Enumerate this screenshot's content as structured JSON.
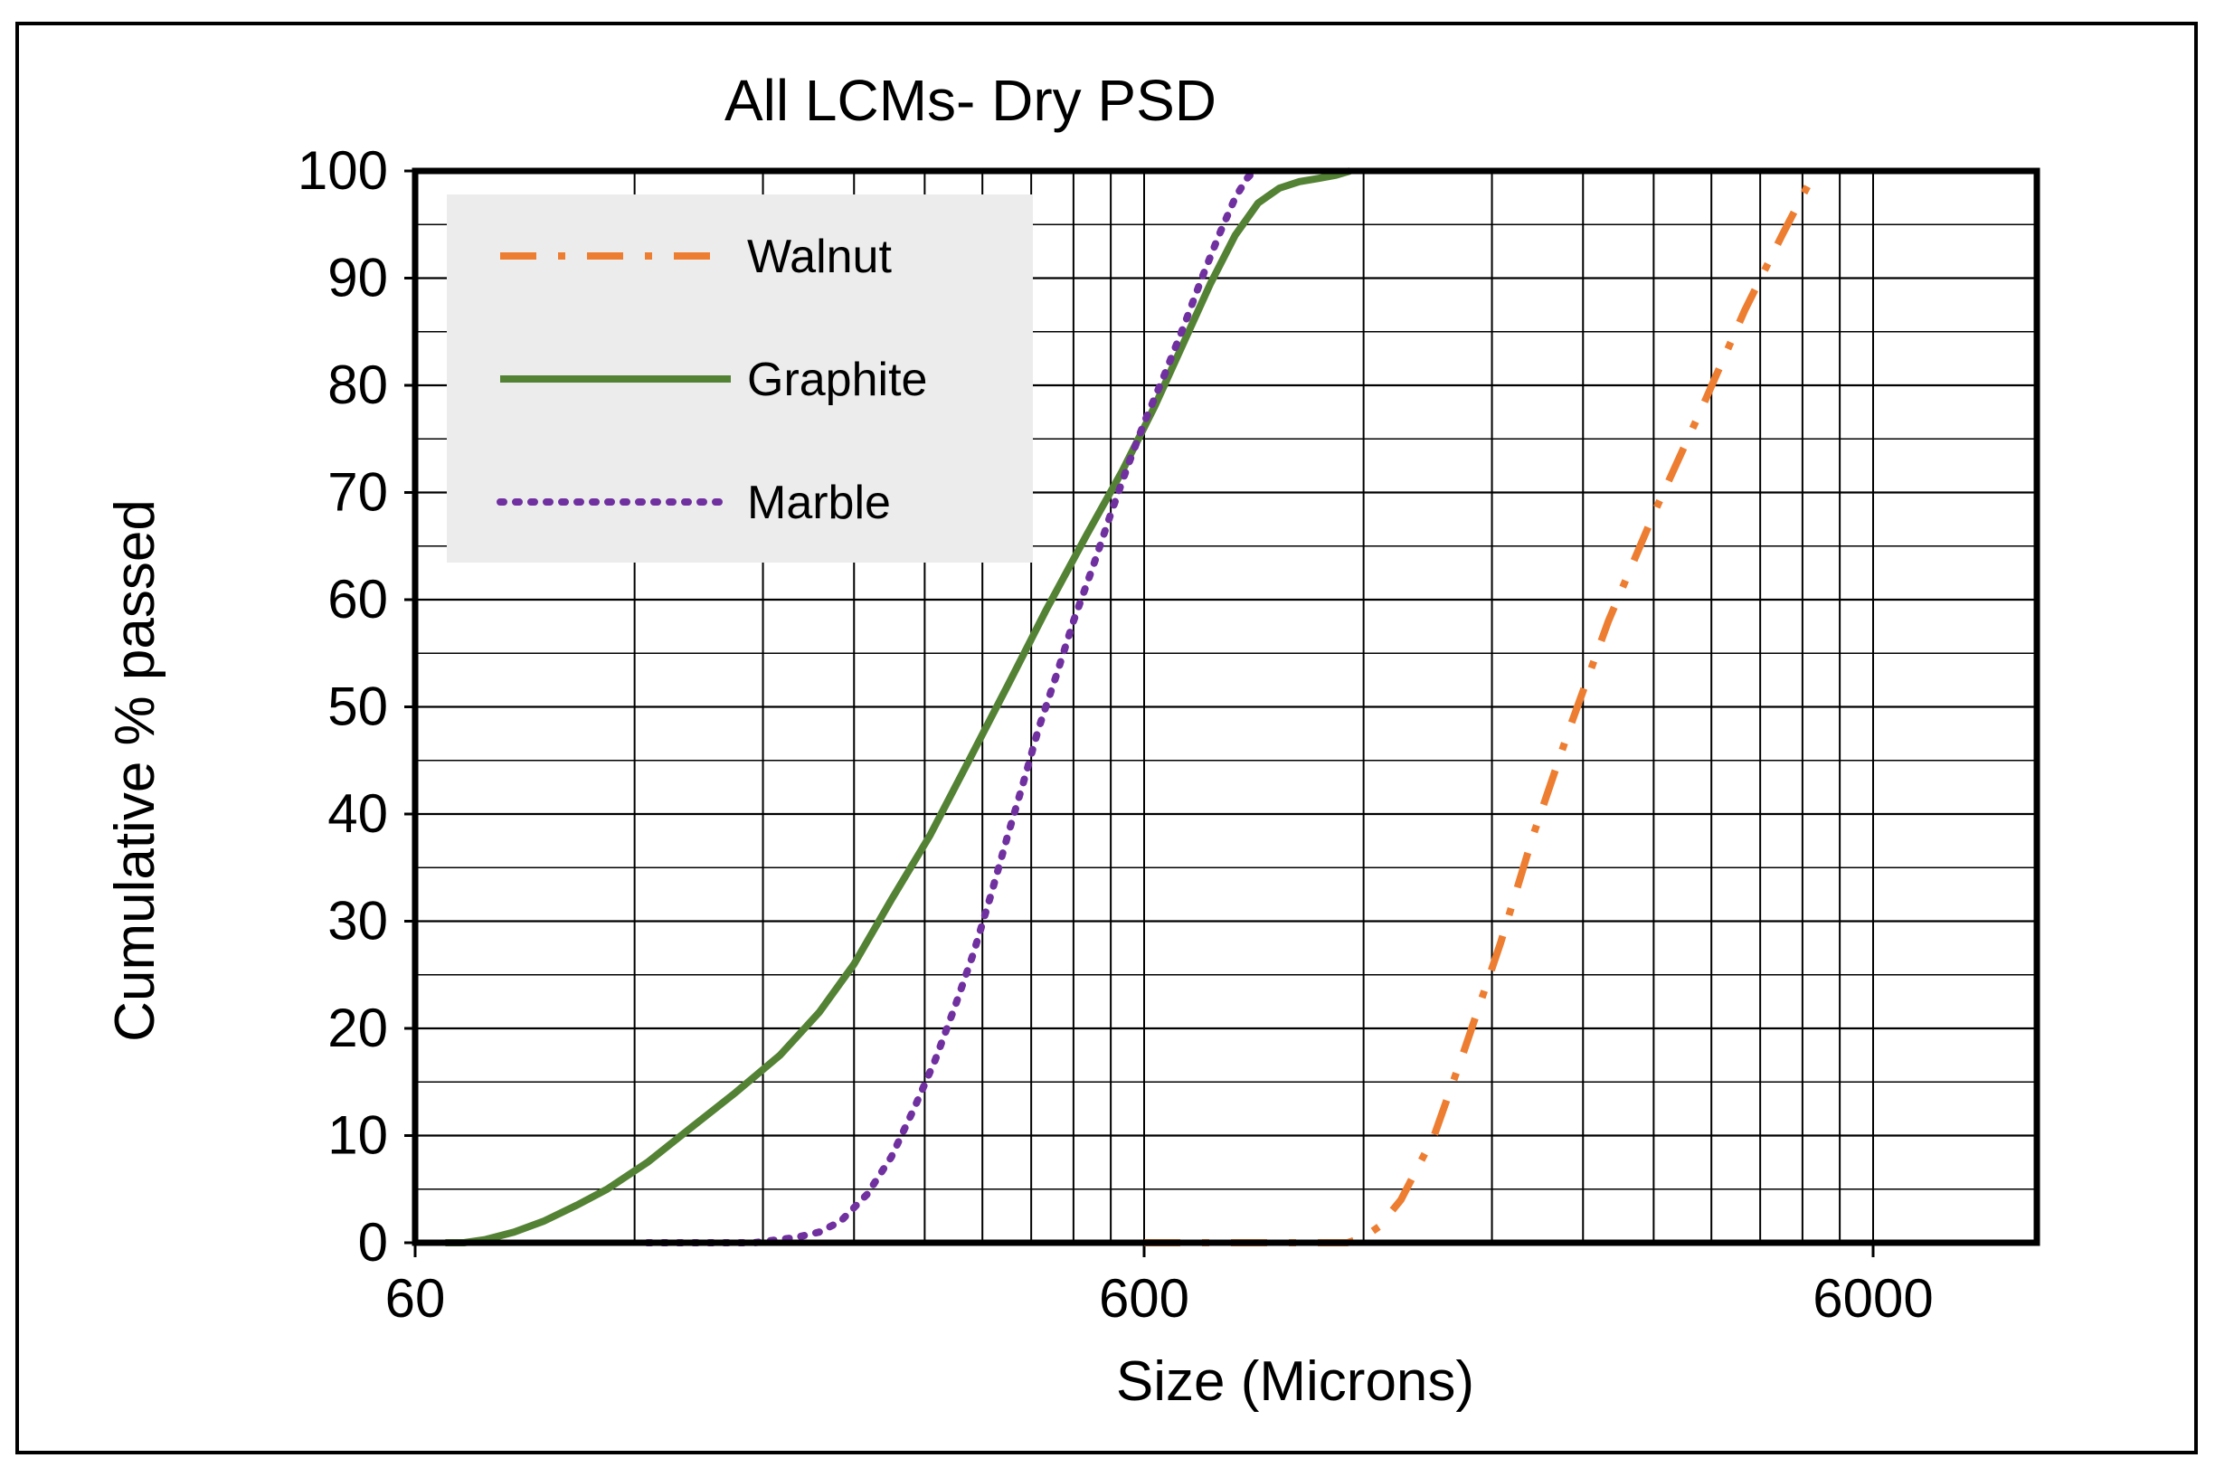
{
  "chart_data": {
    "type": "line",
    "title": "All LCMs- Dry PSD",
    "xlabel": "Size (Microns)",
    "ylabel": "Cumulative % passed",
    "xscale": "log",
    "xlim": [
      60,
      12000
    ],
    "ylim": [
      0,
      100
    ],
    "x_ticks": [
      60,
      600,
      6000
    ],
    "x_tick_labels": [
      "60",
      "600",
      "6000"
    ],
    "y_ticks": [
      0,
      10,
      20,
      30,
      40,
      50,
      60,
      70,
      80,
      90,
      100
    ],
    "y_tick_labels": [
      "0",
      "10",
      "20",
      "30",
      "40",
      "50",
      "60",
      "70",
      "80",
      "90",
      "100"
    ],
    "grid": true,
    "legend_position": "top-left",
    "series": [
      {
        "name": "Walnut",
        "color": "#ed7d31",
        "dash": "dash-dot",
        "x": [
          600,
          750,
          950,
          1140,
          1200,
          1260,
          1350,
          1500,
          1650,
          1850,
          2050,
          2300,
          2600,
          3000,
          3500,
          4000,
          4500,
          5000
        ],
        "y": [
          0,
          0,
          0,
          0,
          0.5,
          1.5,
          4,
          10,
          18,
          28,
          38,
          48,
          58,
          68,
          78,
          87,
          94,
          100
        ]
      },
      {
        "name": "Graphite",
        "color": "#548235",
        "dash": "solid",
        "x": [
          66,
          70,
          75,
          82,
          90,
          100,
          110,
          125,
          145,
          165,
          190,
          215,
          240,
          270,
          305,
          345,
          390,
          440,
          500,
          560,
          620,
          680,
          740,
          800,
          860,
          920,
          980,
          1040,
          1100,
          1150
        ],
        "y": [
          0,
          0,
          0.3,
          1,
          2,
          3.5,
          5,
          7.5,
          11,
          14,
          17.5,
          21.5,
          26,
          32,
          38,
          45,
          52,
          59,
          66,
          72,
          78,
          84,
          89.5,
          94,
          97,
          98.4,
          99,
          99.3,
          99.6,
          100
        ]
      },
      {
        "name": "Marble",
        "color": "#7030a0",
        "dash": "dotted",
        "x": [
          125,
          150,
          175,
          200,
          215,
          230,
          250,
          270,
          290,
          310,
          330,
          350,
          370,
          390,
          410,
          430,
          455,
          480,
          510,
          540,
          570,
          600,
          640,
          680,
          720,
          760,
          800,
          830,
          850
        ],
        "y": [
          0,
          0,
          0,
          0.5,
          1,
          2,
          4.5,
          8,
          12.5,
          17,
          22,
          27,
          32.5,
          38,
          43,
          48,
          53,
          58,
          63,
          68,
          72.5,
          76.5,
          81,
          85.5,
          90,
          94,
          97.5,
          99.3,
          100
        ]
      }
    ]
  }
}
